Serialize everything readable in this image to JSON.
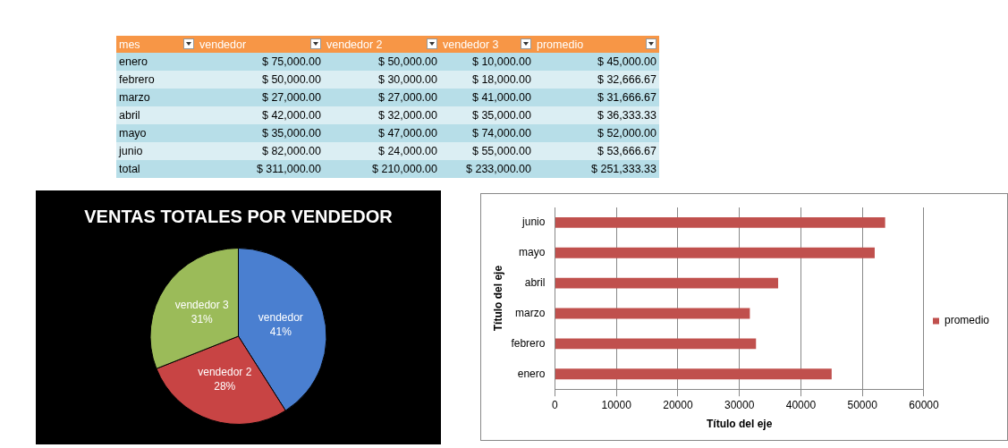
{
  "chart_data": [
    {
      "type": "other",
      "xlabel": "mes",
      "categories": [
        "enero",
        "febrero",
        "marzo",
        "abril",
        "mayo",
        "junio",
        "total"
      ],
      "series": [
        {
          "name": "vendedor",
          "values": [
            75000,
            50000,
            27000,
            42000,
            35000,
            82000,
            311000
          ],
          "colors": [
            "#b7dee8",
            "#dbeef3",
            "#b7dee8",
            "#dbeef3",
            "#b7dee8",
            "#dbeef3",
            "#b7dee8"
          ],
          "value_labels": [
            "$ 75,000.00",
            "$ 50,000.00",
            "$ 27,000.00",
            "$ 42,000.00",
            "$ 35,000.00",
            "$ 82,000.00",
            "$ 311,000.00"
          ]
        },
        {
          "name": "vendedor 2",
          "values": [
            50000,
            30000,
            27000,
            32000,
            47000,
            24000,
            210000
          ],
          "colors": [
            "#b7dee8",
            "#dbeef3",
            "#b7dee8",
            "#dbeef3",
            "#b7dee8",
            "#dbeef3",
            "#b7dee8"
          ],
          "value_labels": [
            "$ 50,000.00",
            "$ 30,000.00",
            "$ 27,000.00",
            "$ 32,000.00",
            "$ 47,000.00",
            "$ 24,000.00",
            "$ 210,000.00"
          ]
        },
        {
          "name": "vendedor 3",
          "values": [
            10000,
            18000,
            41000,
            35000,
            74000,
            55000,
            233000
          ],
          "colors": [
            "#b7dee8",
            "#dbeef3",
            "#b7dee8",
            "#dbeef3",
            "#b7dee8",
            "#dbeef3",
            "#b7dee8"
          ],
          "value_labels": [
            "$ 10,000.00",
            "$ 18,000.00",
            "$ 41,000.00",
            "$ 35,000.00",
            "$ 74,000.00",
            "$ 55,000.00",
            "$ 233,000.00"
          ]
        },
        {
          "name": "promedio",
          "values": [
            45000,
            32666.67,
            31666.67,
            36333.33,
            52000,
            53666.67,
            251333.33
          ],
          "colors": [
            "#b7dee8",
            "#dbeef3",
            "#b7dee8",
            "#dbeef3",
            "#b7dee8",
            "#dbeef3",
            "#b7dee8"
          ],
          "value_labels": [
            "$ 45,000.00",
            "$ 32,666.67",
            "$ 31,666.67",
            "$ 36,333.33",
            "$ 52,000.00",
            "$ 53,666.67",
            "$ 251,333.33"
          ]
        }
      ]
    },
    {
      "type": "pie",
      "title": "VENTAS TOTALES POR VENDEDOR",
      "categories": [
        "vendedor",
        "vendedor 2",
        "vendedor 3"
      ],
      "values": [
        41,
        28,
        31
      ],
      "value_labels": [
        "41%",
        "28%",
        "31%"
      ],
      "colors": [
        "#4a7fd0",
        "#c84444",
        "#9bbb59"
      ]
    },
    {
      "type": "bar",
      "orientation": "horizontal",
      "categories": [
        "junio",
        "mayo",
        "abril",
        "marzo",
        "febrero",
        "enero"
      ],
      "series": [
        {
          "name": "promedio",
          "color": "#c0504d",
          "values": [
            53700,
            52000,
            36300,
            31700,
            32700,
            45000
          ]
        }
      ],
      "xlim": [
        0,
        60000
      ],
      "xticks": [
        0,
        10000,
        20000,
        30000,
        40000,
        50000,
        60000
      ],
      "xlabel": "Título del eje",
      "ylabel": "Título del eje",
      "grid": "x",
      "legend": "right"
    }
  ]
}
